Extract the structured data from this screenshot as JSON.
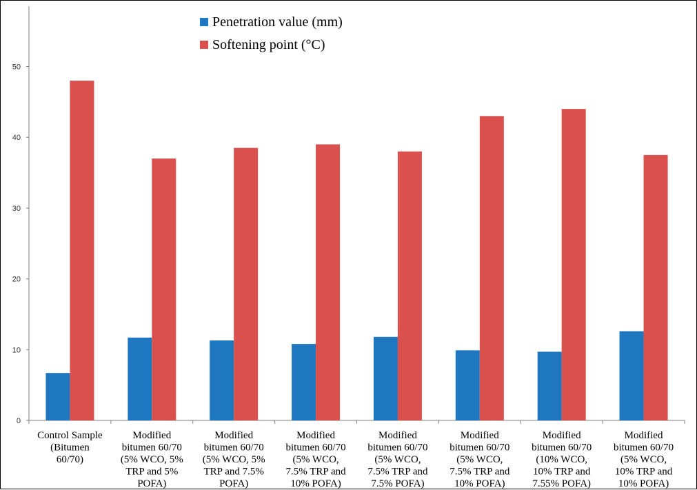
{
  "chart_data": {
    "type": "bar",
    "title": "",
    "xlabel": "",
    "ylabel": "",
    "ylim": [
      0,
      55
    ],
    "yticks": [
      0,
      10,
      20,
      30,
      40,
      50
    ],
    "grid": false,
    "legend_position": "top",
    "categories": [
      [
        "Control Sample",
        "(Bitumen",
        "60/70)"
      ],
      [
        "Modified",
        "bitumen 60/70",
        "(5% WCO, 5%",
        "TRP and 5%",
        "POFA)"
      ],
      [
        "Modified",
        "bitumen 60/70",
        "(5% WCO, 5%",
        "TRP and 7.5%",
        "POFA)"
      ],
      [
        "Modified",
        "bitumen 60/70",
        "(5% WCO,",
        "7.5% TRP and",
        "10% POFA)"
      ],
      [
        "Modified",
        "bitumen 60/70",
        "(5% WCO,",
        "7.5% TRP and",
        "7.5% POFA)"
      ],
      [
        "Modified",
        "bitumen 60/70",
        "(5% WCO,",
        "7.5% TRP and",
        "10% POFA)"
      ],
      [
        "Modified",
        "bitumen 60/70",
        "(10% WCO,",
        "10% TRP and",
        "7.55% POFA)"
      ],
      [
        "Modified",
        "bitumen 60/70",
        "(5% WCO,",
        "10% TRP and",
        "10% POFA)"
      ]
    ],
    "series": [
      {
        "name": "Penetration value (mm)",
        "color": "#1f77c0",
        "values": [
          6.7,
          11.7,
          11.3,
          10.8,
          11.8,
          9.9,
          9.7,
          12.6
        ]
      },
      {
        "name": "Softening point (°C)",
        "color": "#d9504d",
        "values": [
          48,
          37,
          38.5,
          39,
          38,
          43,
          44,
          37.5
        ]
      }
    ]
  }
}
